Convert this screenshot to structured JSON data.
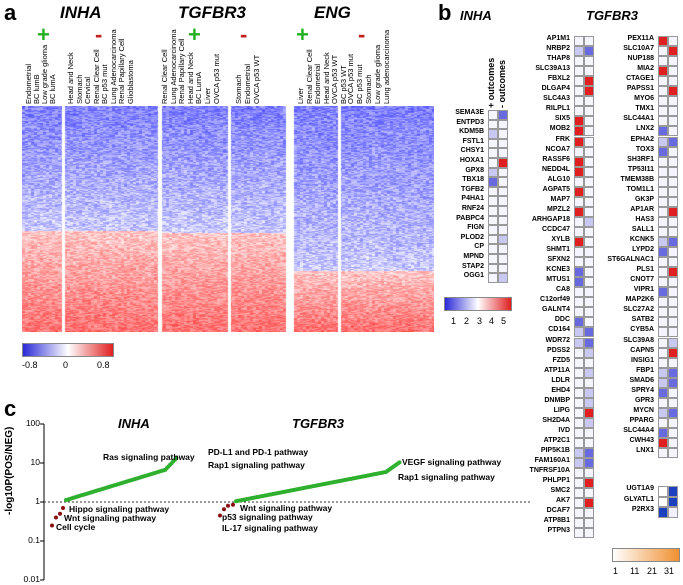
{
  "panel_a": {
    "letter": "a",
    "genes": [
      {
        "name": "INHA",
        "plus_cols": [
          "Endometrial",
          "BC lumB",
          "Low grade glioma",
          "BC lumA"
        ],
        "minus_cols": [
          "Head and Neck",
          "Stomach",
          "Cervical",
          "Renal Clear Cell",
          "BC p53 mut",
          "Lung Adenocarcinoma",
          "Renal Papillary Cell",
          "Glioblastoma"
        ]
      },
      {
        "name": "TGFBR3",
        "plus_cols": [
          "Renal Clear Cell",
          "Lung Adenocarcinoma",
          "Renal Papillary Cell",
          "Head and Neck",
          "BC LumA",
          "Liver",
          "OVCA p53 mut"
        ],
        "minus_cols": [
          "Stomach",
          "Endometrial",
          "OVCA p53 WT"
        ]
      },
      {
        "name": "ENG",
        "plus_cols": [
          "Liver",
          "Renal Clear Cell",
          "Endometrial",
          "Head and Neck",
          "OVCA p53 WT",
          "BC p53 WT"
        ],
        "minus_cols": [
          "OVCA p53 mut",
          "BC p53 mut",
          "Stomach",
          "Low grade glioma",
          "Lung adenocarcinoma"
        ]
      }
    ],
    "plus_symbol": "+",
    "minus_symbol": "-",
    "colorbar_ticks": [
      "-0.8",
      "0",
      "0.8"
    ]
  },
  "panel_b": {
    "letter": "b",
    "inha_title": "INHA",
    "tgfbr3_title": "TGFBR3",
    "col_headers": [
      "+ outcomes",
      "- outcomes"
    ],
    "inha_genes": [
      "SEMA3E",
      "ENTPD3",
      "KDM5B",
      "FSTL1",
      "CHSY1",
      "HOXA1",
      "GPX8",
      "TBX18",
      "TGFB2",
      "P4HA1",
      "RNF24",
      "PABPC4",
      "FIGN",
      "PLOD2",
      "CP",
      "MPND",
      "STAP2",
      "OGG1"
    ],
    "inha_values": [
      [
        1,
        3
      ],
      [
        1,
        1
      ],
      [
        2,
        1
      ],
      [
        1,
        1
      ],
      [
        1,
        1
      ],
      [
        1,
        5
      ],
      [
        2,
        1
      ],
      [
        3,
        1
      ],
      [
        1,
        1
      ],
      [
        1,
        1
      ],
      [
        1,
        1
      ],
      [
        1,
        1
      ],
      [
        1,
        1
      ],
      [
        1,
        2
      ],
      [
        1,
        1
      ],
      [
        1,
        1
      ],
      [
        1,
        1
      ],
      [
        1,
        2
      ]
    ],
    "tgfbr3_col1": [
      "AP1M1",
      "NRBP2",
      "THAP8",
      "SLC39A13",
      "FBXL2",
      "DLGAP4",
      "SLC4A3",
      "RILPL1",
      "SIX5",
      "MOB2",
      "FRK",
      "NCOA7",
      "RASSF6",
      "NEDD4L",
      "ALG10",
      "AGPAT5",
      "MAP7",
      "MPZL2",
      "ARHGAP18",
      "CCDC47",
      "XYLB",
      "SHMT1",
      "SFXN2",
      "KCNE3",
      "MTUS1",
      "CA8",
      "C12orf49",
      "GALNT4",
      "DDC",
      "CD164",
      "WDR72",
      "PDSS2",
      "FZD5",
      "ATP11A",
      "LDLR",
      "EHD4",
      "DNMBP",
      "LIPG",
      "SH2D4A",
      "IVD",
      "ATP2C1",
      "PIP5K1B",
      "FAM160A1",
      "TNFRSF10A",
      "PHLPP1",
      "SMC2",
      "AK7",
      "DCAF7",
      "ATP8B1",
      "PTPN3"
    ],
    "tgfbr3_col2": [
      "PEX11A",
      "SLC10A7",
      "NUP188",
      "MIA2",
      "CTAGE1",
      "PAPSS1",
      "MYO6",
      "TMX1",
      "SLC44A1",
      "LNX2",
      "EPHA2",
      "TOX3",
      "SH3RF1",
      "TP53I11",
      "TMEM38B",
      "TOM1L1",
      "GK3P",
      "AP1AR",
      "HAS3",
      "SALL1",
      "KCNK5",
      "LYPD2",
      "ST6GALNAC1",
      "PLS1",
      "CNOT7",
      "VIPR1",
      "MAP2K6",
      "SLC27A2",
      "SATB2",
      "CYB5A",
      "SLC39A8",
      "CAPN5",
      "INSIG1",
      "FBP1",
      "SMAD6",
      "SPRY4",
      "GPR3",
      "MYCN",
      "PPARG",
      "SLC44A4",
      "CWH43",
      "LNX1"
    ],
    "tgfbr3_col2_extra": [
      "UGT1A9",
      "GLYATL1",
      "P2RX3"
    ],
    "colorbar1_ticks": [
      "1",
      "2",
      "3",
      "4",
      "5"
    ],
    "colorbar2_ticks": [
      "1",
      "11",
      "21",
      "31"
    ]
  },
  "panel_c": {
    "letter": "c",
    "titles": [
      "INHA",
      "TGFBR3"
    ],
    "ylabel": "-log10P(POS/NEG)",
    "yticks": [
      "100",
      "10",
      "1",
      "0.1",
      "0.01"
    ],
    "inha_labels": [
      "Ras signaling pathway",
      "Hippo signaling pathway",
      "Wnt signaling pathway",
      "Cell cycle"
    ],
    "tgfbr3_labels": [
      "PD-L1 and PD-1 pathway",
      "Rap1 signaling pathway",
      "Wnt signaling pathway",
      "p53 signaling pathway",
      "IL-17 signaling pathway",
      "VEGF signaling pathway",
      "Rap1 signaling pathway"
    ],
    "colors": {
      "pos": "#2fb02f",
      "neg": "#8b1010"
    }
  }
}
